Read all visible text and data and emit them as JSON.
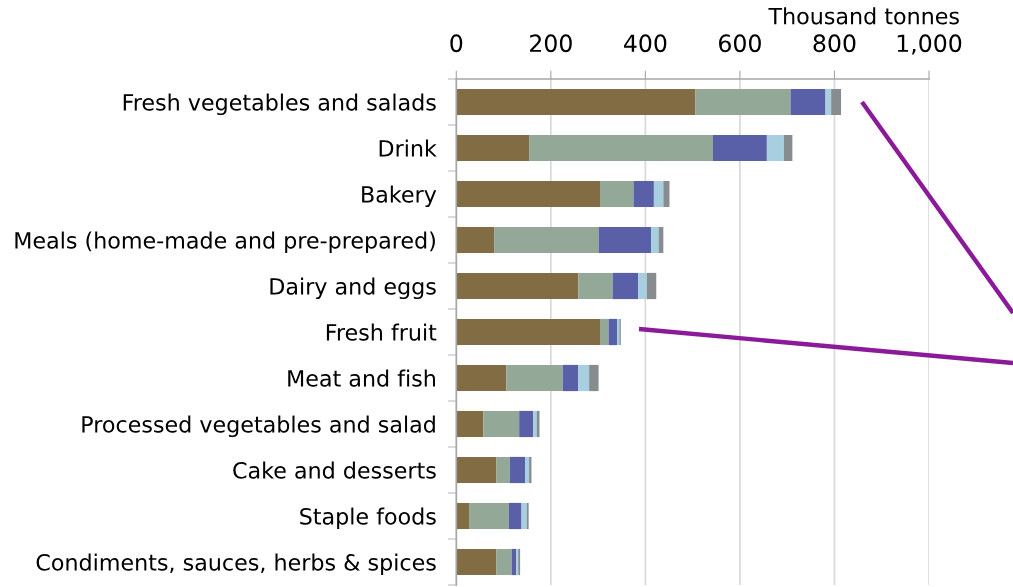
{
  "chart_data": {
    "type": "bar",
    "orientation": "horizontal",
    "stacked": true,
    "xlabel": "Thousand tonnes",
    "categories": [
      "Fresh vegetables and salads",
      "Drink",
      "Bakery",
      "Meals (home-made and pre-prepared)",
      "Dairy and eggs",
      "Fresh fruit",
      "Meat and fish",
      "Processed vegetables and salad",
      "Cake and desserts",
      "Staple foods",
      "Condiments, sauces, herbs & spices"
    ],
    "series": [
      {
        "color": "#826c44",
        "values": [
          506,
          154,
          304,
          80,
          258,
          304,
          106,
          57,
          85,
          27,
          85
        ]
      },
      {
        "color": "#94a898",
        "values": [
          201,
          389,
          71,
          221,
          73,
          18,
          119,
          76,
          28,
          84,
          32
        ]
      },
      {
        "color": "#5a60a8",
        "values": [
          74,
          114,
          43,
          111,
          54,
          18,
          33,
          30,
          33,
          27,
          10
        ]
      },
      {
        "color": "#a8cfe0",
        "values": [
          12,
          36,
          20,
          16,
          18,
          5,
          23,
          7,
          8,
          11,
          4
        ]
      },
      {
        "color": "#878c8e",
        "values": [
          21,
          18,
          13,
          10,
          20,
          3,
          20,
          6,
          5,
          4,
          4
        ]
      }
    ],
    "xlim": [
      0,
      1000
    ],
    "xticks": [
      0,
      200,
      400,
      600,
      800,
      {
        "value": 1000,
        "label": "1,000"
      }
    ],
    "grid": "x"
  }
}
